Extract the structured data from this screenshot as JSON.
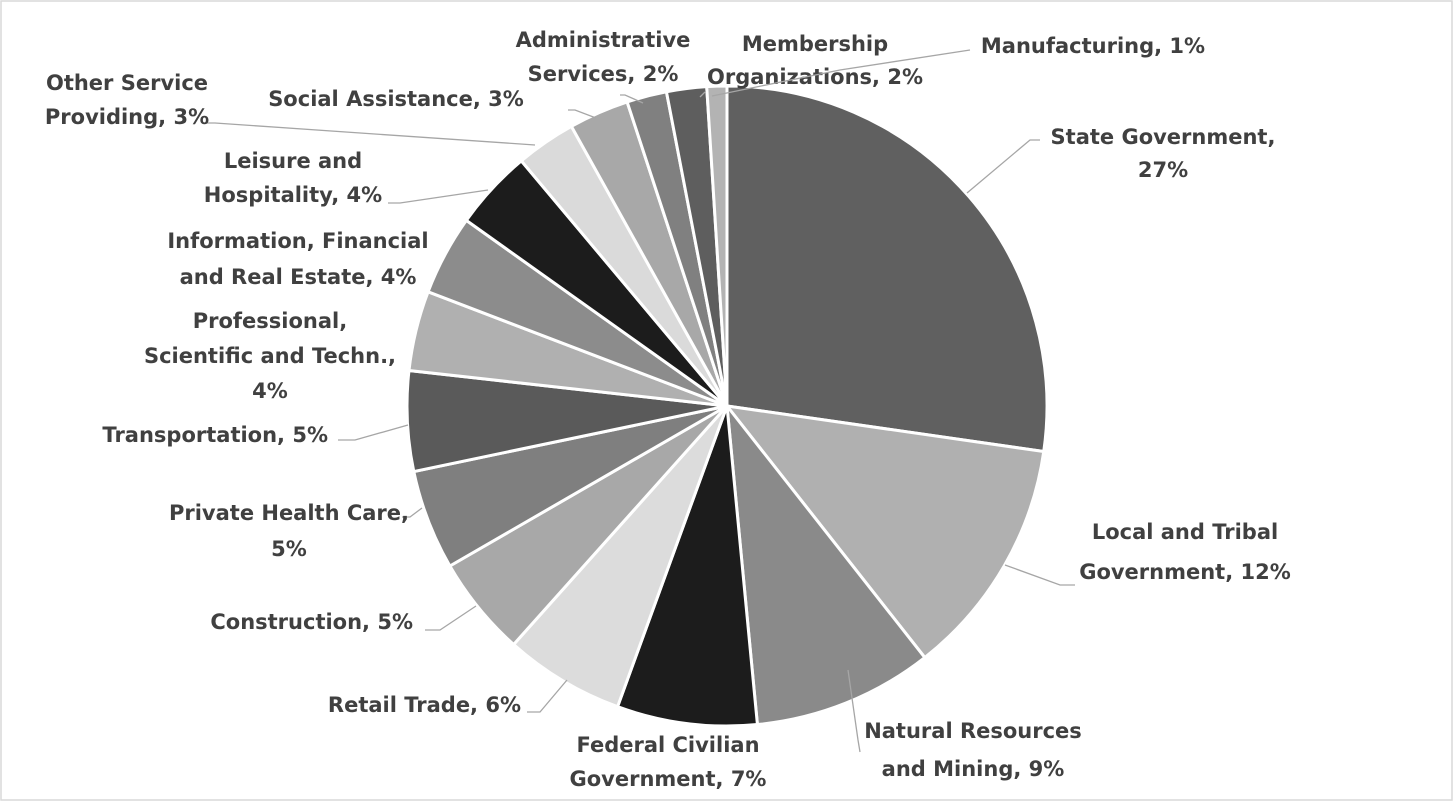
{
  "chart_data": {
    "type": "pie",
    "values": [
      27,
      12,
      9,
      7,
      6,
      5,
      5,
      5,
      4,
      4,
      4,
      3,
      3,
      2,
      2,
      1
    ],
    "value_labels": [
      [
        "State Government,",
        "27%"
      ],
      [
        "Local and Tribal",
        "Government, 12%"
      ],
      [
        "Natural Resources",
        "and Mining, 9%"
      ],
      [
        "Federal Civilian",
        "Government, 7%"
      ],
      [
        "Retail Trade, 6%"
      ],
      [
        "Construction, 5%"
      ],
      [
        "Private Health Care,",
        "5%"
      ],
      [
        "Transportation, 5%"
      ],
      [
        "Professional,",
        "Scientific and Techn.,",
        "4%"
      ],
      [
        "Information, Financial",
        "and Real Estate, 4%"
      ],
      [
        "Leisure and",
        "Hospitality, 4%"
      ],
      [
        "Other Service",
        "Providing, 3%"
      ],
      [
        "Social Assistance, 3%"
      ],
      [
        "Administrative",
        "Services, 2%"
      ],
      [
        "Membership",
        "Organizations, 2%"
      ],
      [
        "Manufacturing, 1%"
      ]
    ],
    "colors": [
      "#606060",
      "#b0b0b0",
      "#8a8a8a",
      "#1c1c1c",
      "#dcdcdc",
      "#a8a8a8",
      "#7f7f7f",
      "#5a5a5a",
      "#b0b0b0",
      "#8c8c8c",
      "#1c1c1c",
      "#dadada",
      "#a8a8a8",
      "#808080",
      "#5e5e5e",
      "#b3b3b3"
    ]
  }
}
